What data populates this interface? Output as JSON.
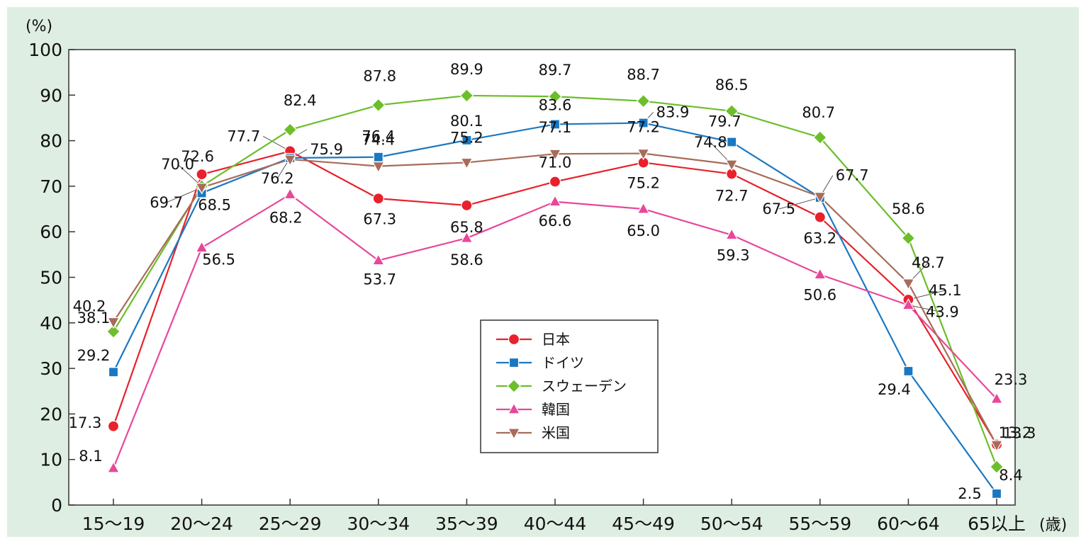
{
  "chart_data": {
    "type": "line",
    "ylabel": "(%)",
    "xlabel": "(歳)",
    "ylim": [
      0,
      100
    ],
    "yticks": [
      "0",
      "10",
      "20",
      "30",
      "40",
      "50",
      "60",
      "70",
      "80",
      "90",
      "100"
    ],
    "categories": [
      "15～19",
      "20～24",
      "25～29",
      "30～34",
      "35～39",
      "40～44",
      "45～49",
      "50～54",
      "55～59",
      "60～64",
      "65以上"
    ],
    "legend_position": "center-lower",
    "series": [
      {
        "name": "日本",
        "color": "#e8212b",
        "marker": "circle",
        "values": [
          17.3,
          72.6,
          77.7,
          67.3,
          65.8,
          71.0,
          75.2,
          72.7,
          63.2,
          45.1,
          13.3
        ],
        "labels": [
          "17.3",
          "72.6",
          "77.7",
          "67.3",
          "65.8",
          "71.0",
          "75.2",
          "72.7",
          "63.2",
          "45.1",
          "13.3"
        ]
      },
      {
        "name": "ドイツ",
        "color": "#1a78c2",
        "marker": "square",
        "values": [
          29.2,
          68.5,
          76.2,
          76.4,
          80.1,
          83.6,
          83.9,
          79.7,
          67.5,
          29.4,
          2.5
        ],
        "labels": [
          "29.2",
          "68.5",
          "76.2",
          "76.4",
          "80.1",
          "83.6",
          "83.9",
          "79.7",
          "67.5",
          "29.4",
          "2.5"
        ]
      },
      {
        "name": "スウェーデン",
        "color": "#6cbe2a",
        "marker": "diamond",
        "values": [
          38.1,
          70.0,
          82.4,
          87.8,
          89.9,
          89.7,
          88.7,
          86.5,
          80.7,
          58.6,
          8.4
        ],
        "labels": [
          "38.1",
          "70.0",
          "82.4",
          "87.8",
          "89.9",
          "89.7",
          "88.7",
          "86.5",
          "80.7",
          "58.6",
          "8.4"
        ]
      },
      {
        "name": "韓国",
        "color": "#e8479a",
        "marker": "triangle-up",
        "values": [
          8.1,
          56.5,
          68.2,
          53.7,
          58.6,
          66.6,
          65.0,
          59.3,
          50.6,
          43.9,
          23.3
        ],
        "labels": [
          "8.1",
          "56.5",
          "68.2",
          "53.7",
          "58.6",
          "66.6",
          "65.0",
          "59.3",
          "50.6",
          "43.9",
          "23.3"
        ]
      },
      {
        "name": "米国",
        "color": "#a76c5a",
        "marker": "triangle-down",
        "values": [
          40.2,
          69.7,
          75.9,
          74.4,
          75.2,
          77.1,
          77.2,
          74.8,
          67.7,
          48.7,
          13.2
        ],
        "labels": [
          "40.2",
          "69.7",
          "75.9",
          "74.4",
          "75.2",
          "77.1",
          "77.2",
          "74.8",
          "67.7",
          "48.7",
          "13.2"
        ]
      }
    ]
  }
}
